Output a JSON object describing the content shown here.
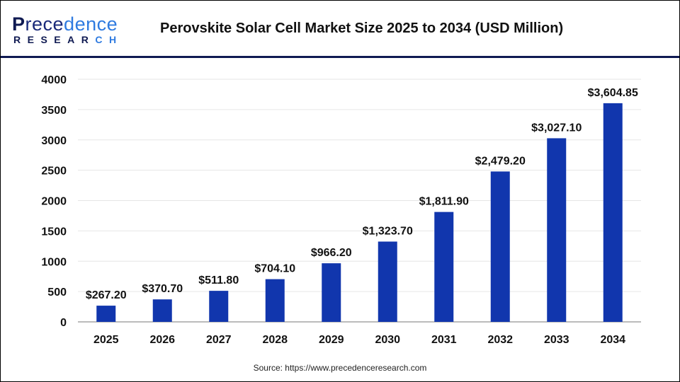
{
  "header": {
    "logo_text": "Precedence Research",
    "title": "Perovskite Solar Cell Market Size 2025 to 2034 (USD Million)"
  },
  "source": "Source: https://www.precedenceresearch.com",
  "colors": {
    "bar": "#1136ad",
    "header_line": "#0f1a52"
  },
  "chart_data": {
    "type": "bar",
    "title": "Perovskite Solar Cell Market Size 2025 to 2034 (USD Million)",
    "categories": [
      "2025",
      "2026",
      "2027",
      "2028",
      "2029",
      "2030",
      "2031",
      "2032",
      "2033",
      "2034"
    ],
    "values": [
      267.2,
      370.7,
      511.8,
      704.1,
      966.2,
      1323.7,
      1811.9,
      2479.2,
      3027.1,
      3604.85
    ],
    "data_labels": [
      "$267.20",
      "$370.70",
      "$511.80",
      "$704.10",
      "$966.20",
      "$1,323.70",
      "$1,811.90",
      "$2,479.20",
      "$3,027.10",
      "$3,604.85"
    ],
    "yticks": [
      "0",
      "500",
      "1000",
      "1500",
      "2000",
      "2500",
      "3000",
      "3500",
      "4000"
    ],
    "ylim": [
      0,
      4000
    ],
    "grid": true,
    "xlabel": "",
    "ylabel": ""
  }
}
